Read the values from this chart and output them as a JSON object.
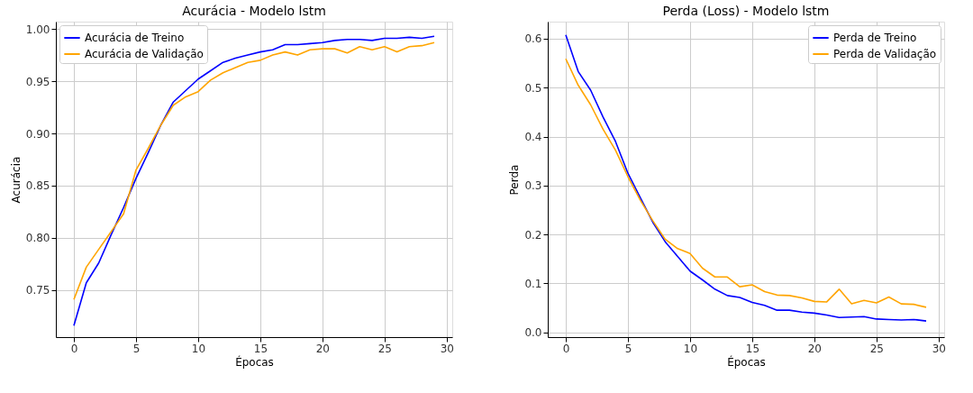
{
  "chart_data": [
    {
      "type": "line",
      "title": "Acurácia - Modelo lstm",
      "xlabel": "Épocas",
      "ylabel": "Acurácia",
      "x": [
        0,
        1,
        2,
        3,
        4,
        5,
        6,
        7,
        8,
        9,
        10,
        11,
        12,
        13,
        14,
        15,
        16,
        17,
        18,
        19,
        20,
        21,
        22,
        23,
        24,
        25,
        26,
        27,
        28,
        29
      ],
      "series": [
        {
          "name": "Acurácia de Treino",
          "color": "#0000ff",
          "values": [
            0.716,
            0.757,
            0.776,
            0.803,
            0.829,
            0.857,
            0.882,
            0.908,
            0.93,
            0.941,
            0.952,
            0.96,
            0.968,
            0.972,
            0.975,
            0.978,
            0.98,
            0.985,
            0.985,
            0.986,
            0.987,
            0.989,
            0.99,
            0.99,
            0.989,
            0.991,
            0.991,
            0.992,
            0.991,
            0.993
          ]
        },
        {
          "name": "Acurácia de Validação",
          "color": "#ffa500",
          "values": [
            0.741,
            0.772,
            0.789,
            0.806,
            0.823,
            0.865,
            0.886,
            0.908,
            0.927,
            0.935,
            0.94,
            0.951,
            0.958,
            0.963,
            0.968,
            0.97,
            0.975,
            0.978,
            0.975,
            0.98,
            0.981,
            0.981,
            0.977,
            0.983,
            0.98,
            0.983,
            0.978,
            0.983,
            0.984,
            0.987
          ]
        }
      ],
      "xlim": [
        -1.45,
        30.45
      ],
      "xticks": [
        0,
        5,
        10,
        15,
        20,
        25,
        30
      ],
      "ylim": [
        0.705,
        1.007
      ],
      "yticks": [
        0.75,
        {
          "value": 0.8,
          "label": "0.80"
        },
        0.85,
        {
          "value": 0.9,
          "label": "0.90"
        },
        0.95,
        {
          "value": 1.0,
          "label": "1.00"
        }
      ],
      "grid": true,
      "legend": "top left",
      "line_style": "solid"
    },
    {
      "type": "line",
      "title": "Perda (Loss) - Modelo lstm",
      "xlabel": "Épocas",
      "ylabel": "Perda",
      "x": [
        0,
        1,
        2,
        3,
        4,
        5,
        6,
        7,
        8,
        9,
        10,
        11,
        12,
        13,
        14,
        15,
        16,
        17,
        18,
        19,
        20,
        21,
        22,
        23,
        24,
        25,
        26,
        27,
        28,
        29
      ],
      "series": [
        {
          "name": "Perda de Treino",
          "color": "#0000ff",
          "values": [
            0.608,
            0.533,
            0.495,
            0.44,
            0.39,
            0.325,
            0.275,
            0.225,
            0.185,
            0.155,
            0.125,
            0.107,
            0.088,
            0.075,
            0.071,
            0.061,
            0.055,
            0.045,
            0.045,
            0.041,
            0.039,
            0.035,
            0.03,
            0.031,
            0.032,
            0.027,
            0.026,
            0.025,
            0.026,
            0.023
          ]
        },
        {
          "name": "Perda de Validação",
          "color": "#ffa500",
          "values": [
            0.559,
            0.505,
            0.465,
            0.415,
            0.372,
            0.318,
            0.27,
            0.228,
            0.19,
            0.171,
            0.161,
            0.131,
            0.113,
            0.113,
            0.093,
            0.097,
            0.083,
            0.076,
            0.075,
            0.07,
            0.063,
            0.062,
            0.088,
            0.058,
            0.065,
            0.06,
            0.072,
            0.058,
            0.057,
            0.051
          ]
        }
      ],
      "xlim": [
        -1.45,
        30.45
      ],
      "xticks": [
        0,
        5,
        10,
        15,
        20,
        25,
        30
      ],
      "ylim": [
        -0.01,
        0.635
      ],
      "yticks": [
        {
          "value": 0,
          "label": "0.0"
        },
        0.1,
        0.2,
        0.3,
        0.4,
        0.5,
        0.6
      ],
      "grid": true,
      "legend": "top right",
      "line_style": "solid"
    }
  ]
}
